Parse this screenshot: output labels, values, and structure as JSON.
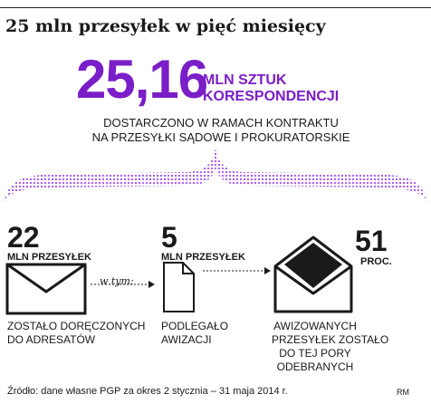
{
  "title": "25 mln przesyłek w pięć miesięcy",
  "headline": {
    "value": "25,16",
    "unit_line1": "MLN SZTUK",
    "unit_line2": "KORESPONDENCJI",
    "desc_line1": "DOSTARCZONO W RAMACH KONTRAKTU",
    "desc_line2": "NA PRZESYŁKI SĄDOWE I PROKURATORSKIE"
  },
  "colors": {
    "accent": "#7a1ec8",
    "text": "#1a1a1a",
    "dots": "#a855f7"
  },
  "steps": [
    {
      "number": "22",
      "label": "MLN PRZESYŁEK",
      "desc_line1": "ZOSTAŁO DORĘCZONYCH",
      "desc_line2": "DO ADRESATÓW",
      "icon": "closed-envelope-icon"
    },
    {
      "number": "5",
      "label": "MLN PRZESYŁEK",
      "desc_line1": "PODLEGAŁO",
      "desc_line2": "AWIZACJI",
      "icon": "document-icon"
    },
    {
      "number": "51",
      "label": "PROC.",
      "desc_line1": "AWIZOWANYCH",
      "desc_line2": "PRZESYŁEK ZOSTAŁO",
      "desc_line3": "DO TEJ PORY",
      "desc_line4": "ODEBRANYCH",
      "icon": "open-envelope-icon"
    }
  ],
  "connector_note": "w tym:",
  "source": "Źródło: dane własne PGP za okres 2 stycznia – 31 maja 2014 r.",
  "credit": "RM"
}
